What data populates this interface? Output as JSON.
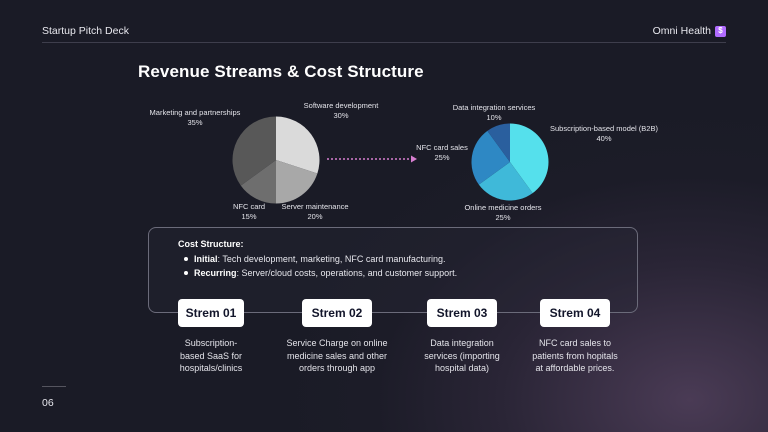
{
  "header": {
    "deck_title": "Startup Pitch Deck",
    "brand": "Omni Health",
    "brand_icon": "dollar-icon",
    "brand_glyph": "$"
  },
  "title": "Revenue Streams & Cost Structure",
  "chart_data": [
    {
      "type": "pie",
      "slices": [
        {
          "label": "Software development",
          "pct_label": "30%",
          "value": 30,
          "color": "#dadada"
        },
        {
          "label": "Server maintenance",
          "pct_label": "20%",
          "value": 20,
          "color": "#a8a8a8"
        },
        {
          "label": "NFC card",
          "pct_label": "15%",
          "value": 15,
          "color": "#6e6e6e"
        },
        {
          "label": "Marketing and partnerships",
          "pct_label": "35%",
          "value": 35,
          "color": "#585858"
        }
      ]
    },
    {
      "type": "pie",
      "slices": [
        {
          "label": "Subscription-based model (B2B)",
          "pct_label": "40%",
          "value": 40,
          "color": "#55e0ec"
        },
        {
          "label": "Online medicine orders",
          "pct_label": "25%",
          "value": 25,
          "color": "#3fb9d9"
        },
        {
          "label": "NFC card sales",
          "pct_label": "25%",
          "value": 25,
          "color": "#2e88c4"
        },
        {
          "label": "Data integration services",
          "pct_label": "10%",
          "value": 10,
          "color": "#2a5f9e"
        }
      ]
    }
  ],
  "cost": {
    "title": "Cost Structure:",
    "items": [
      {
        "bold": "Initial",
        "text": ": Tech development, marketing, NFC card manufacturing."
      },
      {
        "bold": "Recurring",
        "text": ": Server/cloud costs, operations, and customer support."
      }
    ]
  },
  "streams": [
    {
      "label": "Strem 01",
      "desc": [
        "Subscription-",
        "based SaaS for",
        "hospitals/clinics"
      ]
    },
    {
      "label": "Strem 02",
      "desc": [
        "Service Charge on online",
        "medicine sales and other",
        "orders through app"
      ]
    },
    {
      "label": "Strem 03",
      "desc": [
        "Data integration",
        "services (importing",
        "hospital data)"
      ]
    },
    {
      "label": "Strem 04",
      "desc": [
        "NFC card sales to",
        "patients from hopitals",
        "at affordable prices."
      ]
    }
  ],
  "page_number": "06"
}
